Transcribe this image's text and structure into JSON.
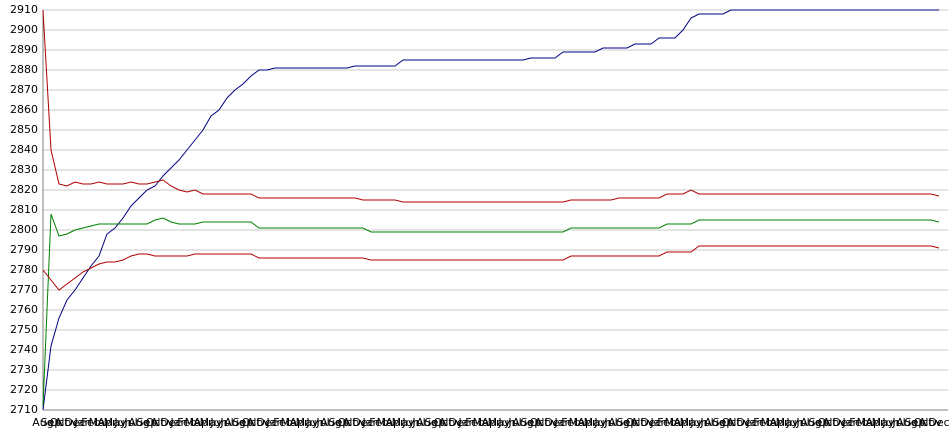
{
  "chart_data": {
    "type": "line",
    "categories": [
      "Aug",
      "Sep",
      "Oct",
      "Nov",
      "Dec",
      "Jan",
      "Feb",
      "Mar",
      "Apr",
      "May",
      "Jun",
      "Jul",
      "Aug",
      "Sep",
      "Oct",
      "Nov",
      "Dec",
      "Jan",
      "Feb",
      "Mar",
      "Apr",
      "May",
      "Jun",
      "Jul",
      "Aug",
      "Sep",
      "Oct",
      "Nov",
      "Dec",
      "Jan",
      "Feb",
      "Mar",
      "Apr",
      "May",
      "Jun",
      "Jul",
      "Aug",
      "Sep",
      "Oct",
      "Nov",
      "Dec",
      "Jan",
      "Feb",
      "Mar",
      "Apr",
      "May",
      "Jun",
      "Jul",
      "Aug",
      "Sep",
      "Oct",
      "Nov",
      "Dec",
      "Jan",
      "Feb",
      "Mar",
      "Apr",
      "May",
      "Jun",
      "Jul",
      "Aug",
      "Sep",
      "Oct",
      "Nov",
      "Dec",
      "Jan",
      "Feb",
      "Mar",
      "Apr",
      "May",
      "Jun",
      "Jul",
      "Aug",
      "Sep",
      "Oct",
      "Nov",
      "Dec",
      "Jan",
      "Feb",
      "Mar",
      "Apr",
      "May",
      "Jun",
      "Jul",
      "Aug",
      "Sep",
      "Oct",
      "Nov",
      "Dec",
      "Jan",
      "Feb",
      "Mar",
      "Apr",
      "May",
      "Jun",
      "Jul",
      "Aug",
      "Sep",
      "Oct",
      "Nov",
      "Dec",
      "Jan",
      "Feb",
      "Mar",
      "Apr",
      "May",
      "Jun",
      "Jul",
      "Aug",
      "Sep",
      "Oct",
      "Nov",
      "Dec"
    ],
    "series": [
      {
        "color": "#000080",
        "values": [
          2710,
          2742,
          2756,
          2765,
          2770,
          2776,
          2782,
          2787,
          2798,
          2801,
          2806,
          2812,
          2816,
          2820,
          2822,
          2827,
          2831,
          2835,
          2840,
          2845,
          2850,
          2857,
          2860,
          2866,
          2870,
          2873,
          2877,
          2880,
          2880,
          2881,
          2881,
          2881,
          2881,
          2881,
          2881,
          2881,
          2881,
          2881,
          2881,
          2882,
          2882,
          2882,
          2882,
          2882,
          2882,
          2885,
          2885,
          2885,
          2885,
          2885,
          2885,
          2885,
          2885,
          2885,
          2885,
          2885,
          2885,
          2885,
          2885,
          2885,
          2885,
          2886,
          2886,
          2886,
          2886,
          2889,
          2889,
          2889,
          2889,
          2889,
          2891,
          2891,
          2891,
          2891,
          2893,
          2893,
          2893,
          2896,
          2896,
          2896,
          2900,
          2906,
          2908,
          2908,
          2908,
          2908,
          2910,
          2910,
          2910,
          2910,
          2910,
          2910,
          2910,
          2910,
          2910,
          2910,
          2910,
          2910,
          2910,
          2910,
          2910,
          2910,
          2910,
          2910,
          2910,
          2910,
          2910,
          2910,
          2910,
          2910,
          2910,
          2910,
          2910
        ]
      },
      {
        "color": "#b00000",
        "values": [
          2910,
          2840,
          2823,
          2822,
          2824,
          2823,
          2823,
          2824,
          2823,
          2823,
          2823,
          2824,
          2823,
          2823,
          2824,
          2825,
          2822,
          2820,
          2819,
          2820,
          2818,
          2818,
          2818,
          2818,
          2818,
          2818,
          2818,
          2816,
          2816,
          2816,
          2816,
          2816,
          2816,
          2816,
          2816,
          2816,
          2816,
          2816,
          2816,
          2816,
          2815,
          2815,
          2815,
          2815,
          2815,
          2814,
          2814,
          2814,
          2814,
          2814,
          2814,
          2814,
          2814,
          2814,
          2814,
          2814,
          2814,
          2814,
          2814,
          2814,
          2814,
          2814,
          2814,
          2814,
          2814,
          2814,
          2815,
          2815,
          2815,
          2815,
          2815,
          2815,
          2816,
          2816,
          2816,
          2816,
          2816,
          2816,
          2818,
          2818,
          2818,
          2820,
          2818,
          2818,
          2818,
          2818,
          2818,
          2818,
          2818,
          2818,
          2818,
          2818,
          2818,
          2818,
          2818,
          2818,
          2818,
          2818,
          2818,
          2818,
          2818,
          2818,
          2818,
          2818,
          2818,
          2818,
          2818,
          2818,
          2818,
          2818,
          2818,
          2818,
          2817
        ]
      },
      {
        "color": "#008000",
        "values": [
          2712,
          2808,
          2797,
          2798,
          2800,
          2801,
          2802,
          2803,
          2803,
          2803,
          2803,
          2803,
          2803,
          2803,
          2805,
          2806,
          2804,
          2803,
          2803,
          2803,
          2804,
          2804,
          2804,
          2804,
          2804,
          2804,
          2804,
          2801,
          2801,
          2801,
          2801,
          2801,
          2801,
          2801,
          2801,
          2801,
          2801,
          2801,
          2801,
          2801,
          2801,
          2799,
          2799,
          2799,
          2799,
          2799,
          2799,
          2799,
          2799,
          2799,
          2799,
          2799,
          2799,
          2799,
          2799,
          2799,
          2799,
          2799,
          2799,
          2799,
          2799,
          2799,
          2799,
          2799,
          2799,
          2799,
          2801,
          2801,
          2801,
          2801,
          2801,
          2801,
          2801,
          2801,
          2801,
          2801,
          2801,
          2801,
          2803,
          2803,
          2803,
          2803,
          2805,
          2805,
          2805,
          2805,
          2805,
          2805,
          2805,
          2805,
          2805,
          2805,
          2805,
          2805,
          2805,
          2805,
          2805,
          2805,
          2805,
          2805,
          2805,
          2805,
          2805,
          2805,
          2805,
          2805,
          2805,
          2805,
          2805,
          2805,
          2805,
          2805,
          2804
        ]
      },
      {
        "color": "#b00000",
        "values": [
          2780,
          2775,
          2770,
          2773,
          2776,
          2779,
          2781,
          2783,
          2784,
          2784,
          2785,
          2787,
          2788,
          2788,
          2787,
          2787,
          2787,
          2787,
          2787,
          2788,
          2788,
          2788,
          2788,
          2788,
          2788,
          2788,
          2788,
          2786,
          2786,
          2786,
          2786,
          2786,
          2786,
          2786,
          2786,
          2786,
          2786,
          2786,
          2786,
          2786,
          2786,
          2785,
          2785,
          2785,
          2785,
          2785,
          2785,
          2785,
          2785,
          2785,
          2785,
          2785,
          2785,
          2785,
          2785,
          2785,
          2785,
          2785,
          2785,
          2785,
          2785,
          2785,
          2785,
          2785,
          2785,
          2785,
          2787,
          2787,
          2787,
          2787,
          2787,
          2787,
          2787,
          2787,
          2787,
          2787,
          2787,
          2787,
          2789,
          2789,
          2789,
          2789,
          2792,
          2792,
          2792,
          2792,
          2792,
          2792,
          2792,
          2792,
          2792,
          2792,
          2792,
          2792,
          2792,
          2792,
          2792,
          2792,
          2792,
          2792,
          2792,
          2792,
          2792,
          2792,
          2792,
          2792,
          2792,
          2792,
          2792,
          2792,
          2792,
          2792,
          2791
        ]
      }
    ],
    "ylim": [
      2710,
      2910
    ],
    "yticks": [
      2710,
      2720,
      2730,
      2740,
      2750,
      2760,
      2770,
      2780,
      2790,
      2800,
      2810,
      2820,
      2830,
      2840,
      2850,
      2860,
      2870,
      2880,
      2890,
      2900,
      2910
    ],
    "grid": true
  }
}
